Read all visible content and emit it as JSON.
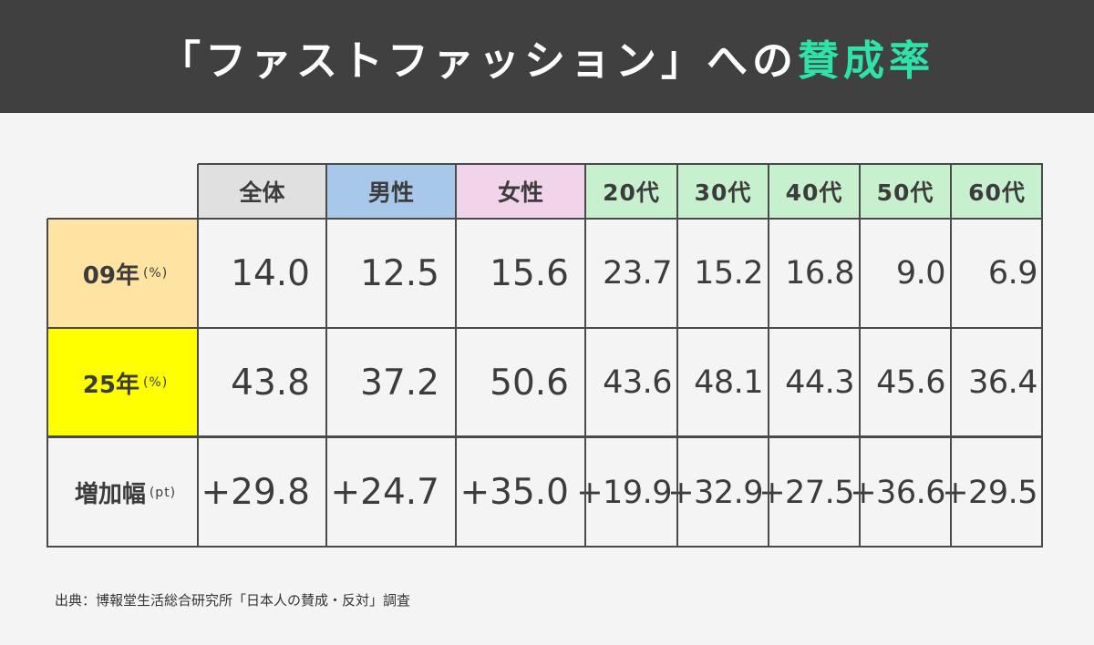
{
  "header": {
    "title_main": "「ファストファッション」への",
    "title_accent": "賛成率"
  },
  "colors": {
    "header_bg": "#404040",
    "accent": "#2fe2a9",
    "all_header": "#e0e0e0",
    "male_header": "#a8c8ea",
    "female_header": "#f1d3ea",
    "age_header": "#c7f0ce",
    "row09": "#ffe3a3",
    "row25": "#ffff00"
  },
  "chart_data": {
    "type": "table",
    "title": "「ファストファッション」への賛成率",
    "columns": [
      "全体",
      "男性",
      "女性",
      "20代",
      "30代",
      "40代",
      "50代",
      "60代"
    ],
    "rows": [
      {
        "label": "09年",
        "unit": "(%)",
        "values": [
          "14.0",
          "12.5",
          "15.6",
          "23.7",
          "15.2",
          "16.8",
          "9.0",
          "6.9"
        ]
      },
      {
        "label": "25年",
        "unit": "(%)",
        "values": [
          "43.8",
          "37.2",
          "50.6",
          "43.6",
          "48.1",
          "44.3",
          "45.6",
          "36.4"
        ]
      },
      {
        "label": "増加幅",
        "unit": "(pt)",
        "values": [
          "+29.8",
          "+24.7",
          "+35.0",
          "+19.9",
          "+32.9",
          "+27.5",
          "+36.6",
          "+29.5"
        ]
      }
    ]
  },
  "footer": {
    "source": "出典：博報堂生活総合研究所「日本人の賛成・反対」調査"
  }
}
